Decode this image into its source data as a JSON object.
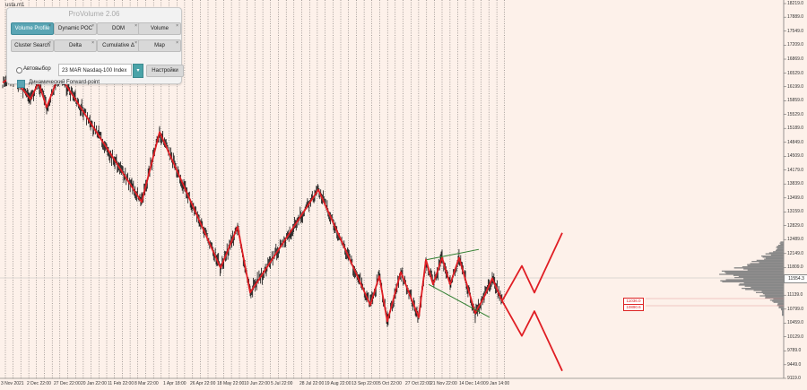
{
  "symbol_label": "usta.m1",
  "panel": {
    "title": "ProVolume 2.06",
    "buttons": [
      {
        "label": "Volume Profile",
        "active": true
      },
      {
        "label": "Dynamic POC",
        "active": false
      },
      {
        "label": "DOM",
        "active": false
      },
      {
        "label": "Volume",
        "active": false
      },
      {
        "label": "Cluster Search",
        "active": false
      },
      {
        "label": "Delta",
        "active": false
      },
      {
        "label": "Cumulative Δ",
        "active": false
      },
      {
        "label": "Map",
        "active": false
      }
    ],
    "auto_label": "Автовыбор",
    "instrument_value": "23 MAR Nasdaq-100 Index",
    "dropdown_icon": "chevron-down-icon",
    "settings_label": "Настройки",
    "forward_point_label": "Динамический Forward-point"
  },
  "current_price": "11554.3",
  "level_tags": [
    "11036.0",
    "10890.6"
  ],
  "colors": {
    "background": "#fdf1ea",
    "zigzag": "#e01e24",
    "channel": "#2e7d2e",
    "candles": "#111111",
    "profile": "#888888",
    "accent": "#5aa5b4"
  },
  "chart_data": {
    "type": "line",
    "y_ticks": [
      "18219.0",
      "17889.0",
      "17549.0",
      "17209.0",
      "16869.0",
      "16529.0",
      "16199.0",
      "15859.0",
      "15529.0",
      "15189.0",
      "14849.0",
      "14509.0",
      "14179.0",
      "13839.0",
      "13499.0",
      "13159.0",
      "12829.0",
      "12489.0",
      "12149.0",
      "11809.0",
      "11469.0",
      "11139.0",
      "10799.0",
      "10459.0",
      "10129.0",
      "9789.0",
      "9449.0",
      "9119.0"
    ],
    "x_ticks": [
      "3 Nov 2021",
      "2 Dec 22:00",
      "27 Dec 22:00",
      "20 Jan 22:00",
      "11 Feb 22:00",
      "8 Mar 22:00",
      "1 Apr 18:00",
      "26 Apr 22:00",
      "18 May 22:00",
      "10 Jun 22:00",
      "5 Jul 22:00",
      "28 Jul 22:00",
      "19 Aug 22:00",
      "13 Sep 22:00",
      "5 Oct 22:00",
      "27 Oct 22:00",
      "21 Nov 22:00",
      "14 Dec 14:00",
      "9 Jan 14:00"
    ],
    "zigzag": [
      {
        "x": "3 Nov 2021",
        "y": 16300
      },
      {
        "x": "10 Nov 2021",
        "y": 16450
      },
      {
        "x": "22 Nov 2021",
        "y": 15900
      },
      {
        "x": "2 Dec 22:00",
        "y": 16300
      },
      {
        "x": "10 Dec",
        "y": 15700
      },
      {
        "x": "28 Dec",
        "y": 16500
      },
      {
        "x": "20 Feb",
        "y": 13400
      },
      {
        "x": "29 Mar",
        "y": 15100
      },
      {
        "x": "12 May",
        "y": 11800
      },
      {
        "x": "1 Jun",
        "y": 12800
      },
      {
        "x": "16 Jun",
        "y": 11200
      },
      {
        "x": "16 Aug",
        "y": 13700
      },
      {
        "x": "30 Sep",
        "y": 10900
      },
      {
        "x": "7 Oct",
        "y": 11600
      },
      {
        "x": "13 Oct",
        "y": 10500
      },
      {
        "x": "26 Oct",
        "y": 11700
      },
      {
        "x": "4 Nov",
        "y": 10600
      },
      {
        "x": "15 Nov",
        "y": 12000
      },
      {
        "x": "22 Nov",
        "y": 11400
      },
      {
        "x": "1 Dec",
        "y": 12050
      },
      {
        "x": "8 Dec",
        "y": 11400
      },
      {
        "x": "15 Dec",
        "y": 12050
      },
      {
        "x": "28 Dec",
        "y": 10700
      },
      {
        "x": "3 Jan",
        "y": 11100
      },
      {
        "x": "9 Jan 14:00",
        "y": 11550
      },
      {
        "x": "14 Jan",
        "y": 11000
      }
    ],
    "projections": [
      [
        {
          "y": 11000
        },
        {
          "y": 11850
        },
        {
          "y": 11200
        },
        {
          "y": 12650
        }
      ],
      [
        {
          "y": 11000
        },
        {
          "y": 10150
        },
        {
          "y": 10750
        },
        {
          "y": 9300
        }
      ]
    ],
    "channel": {
      "upper": [
        12000,
        12250
      ],
      "lower": [
        11400,
        10600
      ]
    }
  }
}
